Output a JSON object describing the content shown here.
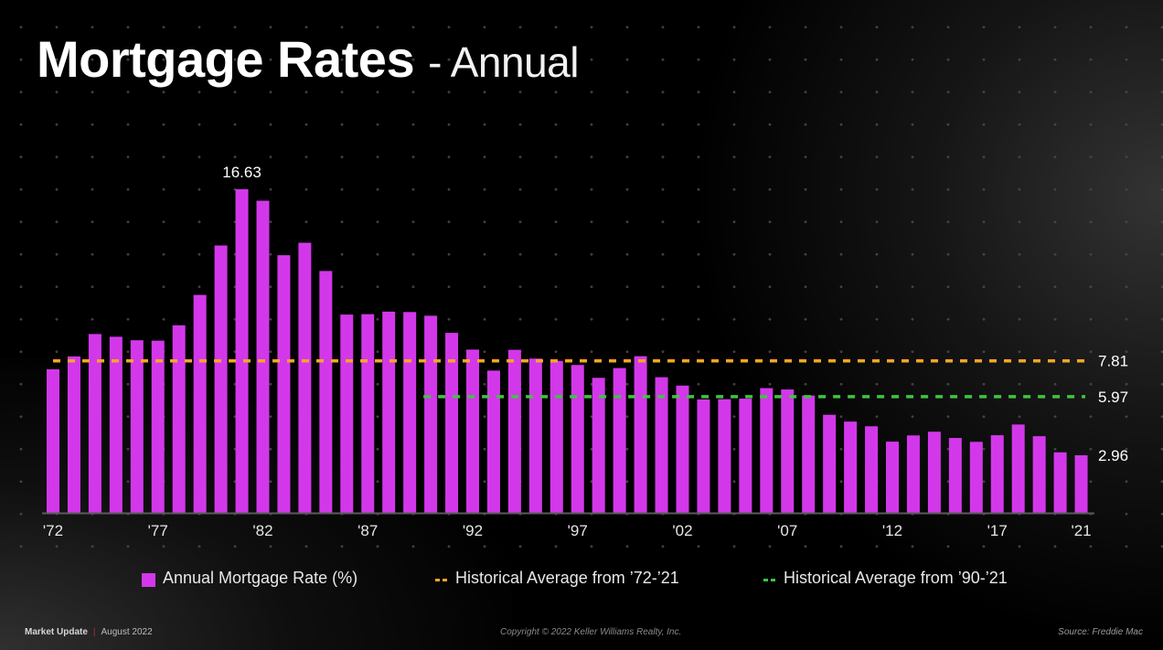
{
  "slide": {
    "title_bold": "Mortgage Rates",
    "title_light": "- Annual"
  },
  "colors": {
    "bar": "#d238ea",
    "avg_all": "#f5a623",
    "avg_recent": "#3fc43f",
    "axis": "#5a5a5a",
    "text": "#ffffff"
  },
  "chart_data": {
    "type": "bar",
    "title": "Mortgage Rates - Annual",
    "xlabel": "",
    "ylabel": "",
    "ylim": [
      0,
      16.63
    ],
    "grid": false,
    "legend_position": "bottom",
    "categories": [
      "1972",
      "1973",
      "1974",
      "1975",
      "1976",
      "1977",
      "1978",
      "1979",
      "1980",
      "1981",
      "1982",
      "1983",
      "1984",
      "1985",
      "1986",
      "1987",
      "1988",
      "1989",
      "1990",
      "1991",
      "1992",
      "1993",
      "1994",
      "1995",
      "1996",
      "1997",
      "1998",
      "1999",
      "2000",
      "2001",
      "2002",
      "2003",
      "2004",
      "2005",
      "2006",
      "2007",
      "2008",
      "2009",
      "2010",
      "2011",
      "2012",
      "2013",
      "2014",
      "2015",
      "2016",
      "2017",
      "2018",
      "2019",
      "2020",
      "2021"
    ],
    "series": [
      {
        "name": "Annual Mortgage Rate (%)",
        "values": [
          7.38,
          8.04,
          9.19,
          9.05,
          8.87,
          8.85,
          9.64,
          11.2,
          13.74,
          16.63,
          16.04,
          13.24,
          13.88,
          12.43,
          10.19,
          10.21,
          10.34,
          10.32,
          10.13,
          9.25,
          8.39,
          7.31,
          8.38,
          7.93,
          7.81,
          7.6,
          6.94,
          7.44,
          8.05,
          6.97,
          6.54,
          5.83,
          5.84,
          5.87,
          6.41,
          6.34,
          6.03,
          5.04,
          4.69,
          4.45,
          3.66,
          3.98,
          4.17,
          3.85,
          3.65,
          3.99,
          4.54,
          3.94,
          3.11,
          2.96
        ]
      }
    ],
    "reference_lines": [
      {
        "name": "Historical Average from ’72-’21",
        "value": 7.81,
        "label": "7.81",
        "from": "1972",
        "to": "2021"
      },
      {
        "name": "Historical Average from ’90-’21",
        "value": 5.97,
        "label": "5.97",
        "from": "1990",
        "to": "2021"
      }
    ],
    "data_labels": [
      {
        "category": "1981",
        "label": "16.63"
      },
      {
        "category": "2021",
        "label": "2.96"
      }
    ],
    "tick_labels": [
      {
        "category": "1972",
        "label": "'72"
      },
      {
        "category": "1977",
        "label": "'77"
      },
      {
        "category": "1982",
        "label": "'82"
      },
      {
        "category": "1987",
        "label": "'87"
      },
      {
        "category": "1992",
        "label": "'92"
      },
      {
        "category": "1997",
        "label": "'97"
      },
      {
        "category": "2002",
        "label": "'02"
      },
      {
        "category": "2007",
        "label": "'07"
      },
      {
        "category": "2012",
        "label": "'12"
      },
      {
        "category": "2017",
        "label": "'17"
      },
      {
        "category": "2021",
        "label": "'21"
      }
    ]
  },
  "legend": {
    "items": [
      {
        "label": "Annual Mortgage Rate (%)"
      },
      {
        "label": "Historical Average from ’72-’21"
      },
      {
        "label": "Historical Average from ’90-’21"
      }
    ]
  },
  "footer": {
    "section": "Market Update",
    "separator": "|",
    "date": "August 2022",
    "copyright": "Copyright © 2022 Keller Williams Realty, Inc.",
    "source": "Source: Freddie Mac"
  }
}
